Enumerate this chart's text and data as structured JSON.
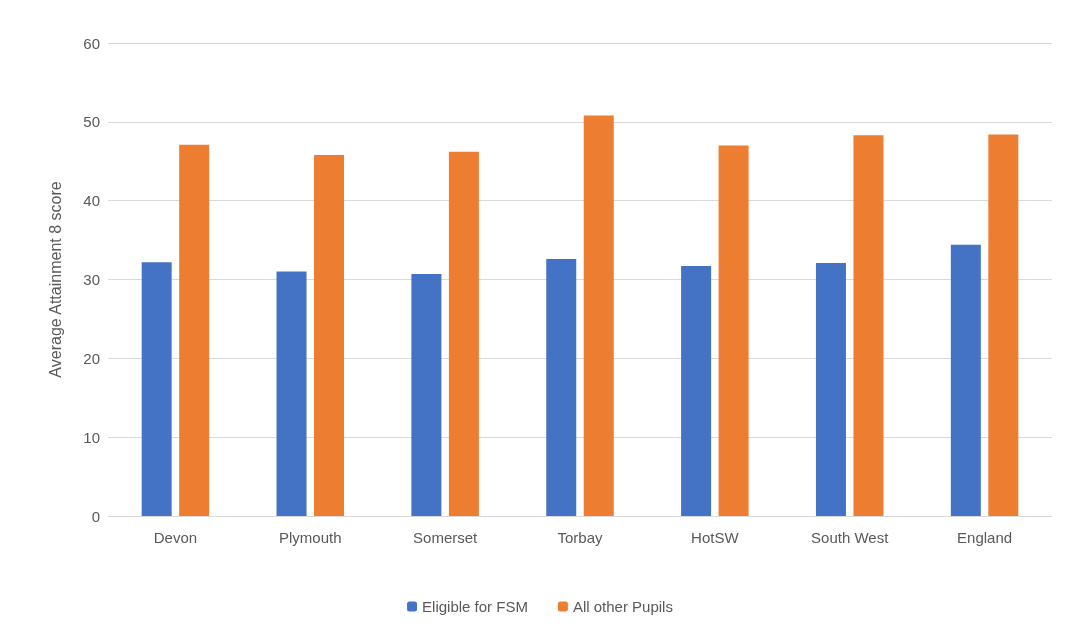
{
  "chart_data": {
    "type": "bar",
    "ylabel": "Average Attainment 8 score",
    "categories": [
      "Devon",
      "Plymouth",
      "Somerset",
      "Torbay",
      "HotSW",
      "South West",
      "England"
    ],
    "series": [
      {
        "name": "Eligible for FSM",
        "color": "#4472c4",
        "values": [
          32.2,
          31.0,
          30.7,
          32.6,
          31.7,
          32.1,
          34.4
        ]
      },
      {
        "name": "All other Pupils",
        "color": "#ed7d31",
        "values": [
          47.1,
          45.8,
          46.2,
          50.8,
          47.0,
          48.3,
          48.4
        ]
      }
    ],
    "ylim": [
      0,
      60
    ],
    "yticks": [
      0,
      10,
      20,
      30,
      40,
      50,
      60
    ],
    "grid": "y",
    "legend": "bottom"
  }
}
